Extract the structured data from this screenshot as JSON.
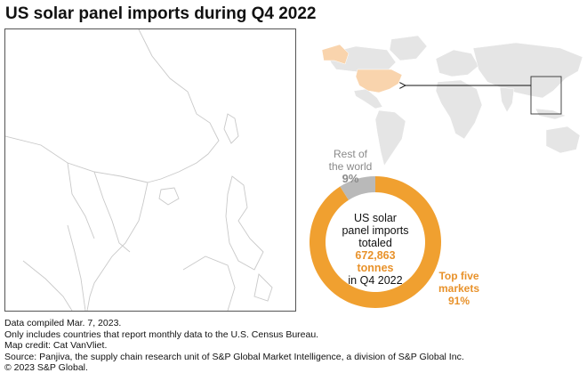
{
  "title": "US solar panel imports during Q4 2022",
  "donut": {
    "rest_label_line1": "Rest of",
    "rest_label_line2": "the world",
    "rest_pct": "9%",
    "top_label_line1": "Top five",
    "top_label_line2": "markets",
    "top_pct": "91%",
    "center_line1": "US solar",
    "center_line2": "panel imports",
    "center_line3": "totaled",
    "center_value1": "672,863",
    "center_value2": "tonnes",
    "center_line4": "in Q4 2022",
    "shares": [
      9,
      91
    ],
    "colors": {
      "rest": "#b9b9b9",
      "top": "#f0a030"
    }
  },
  "colors": {
    "us_fill": "#f9d4ad",
    "land": "#e5e5e5",
    "border": "#555555"
  },
  "notes": [
    "Data compiled Mar. 7, 2023.",
    "Only includes countries that report monthly data to the U.S. Census Bureau.",
    "Map credit: Cat VanVliet.",
    "Source: Panjiva, the supply chain research unit of S&P Global Market Intelligence, a division of S&P Global Inc.",
    "© 2023 S&P Global."
  ]
}
